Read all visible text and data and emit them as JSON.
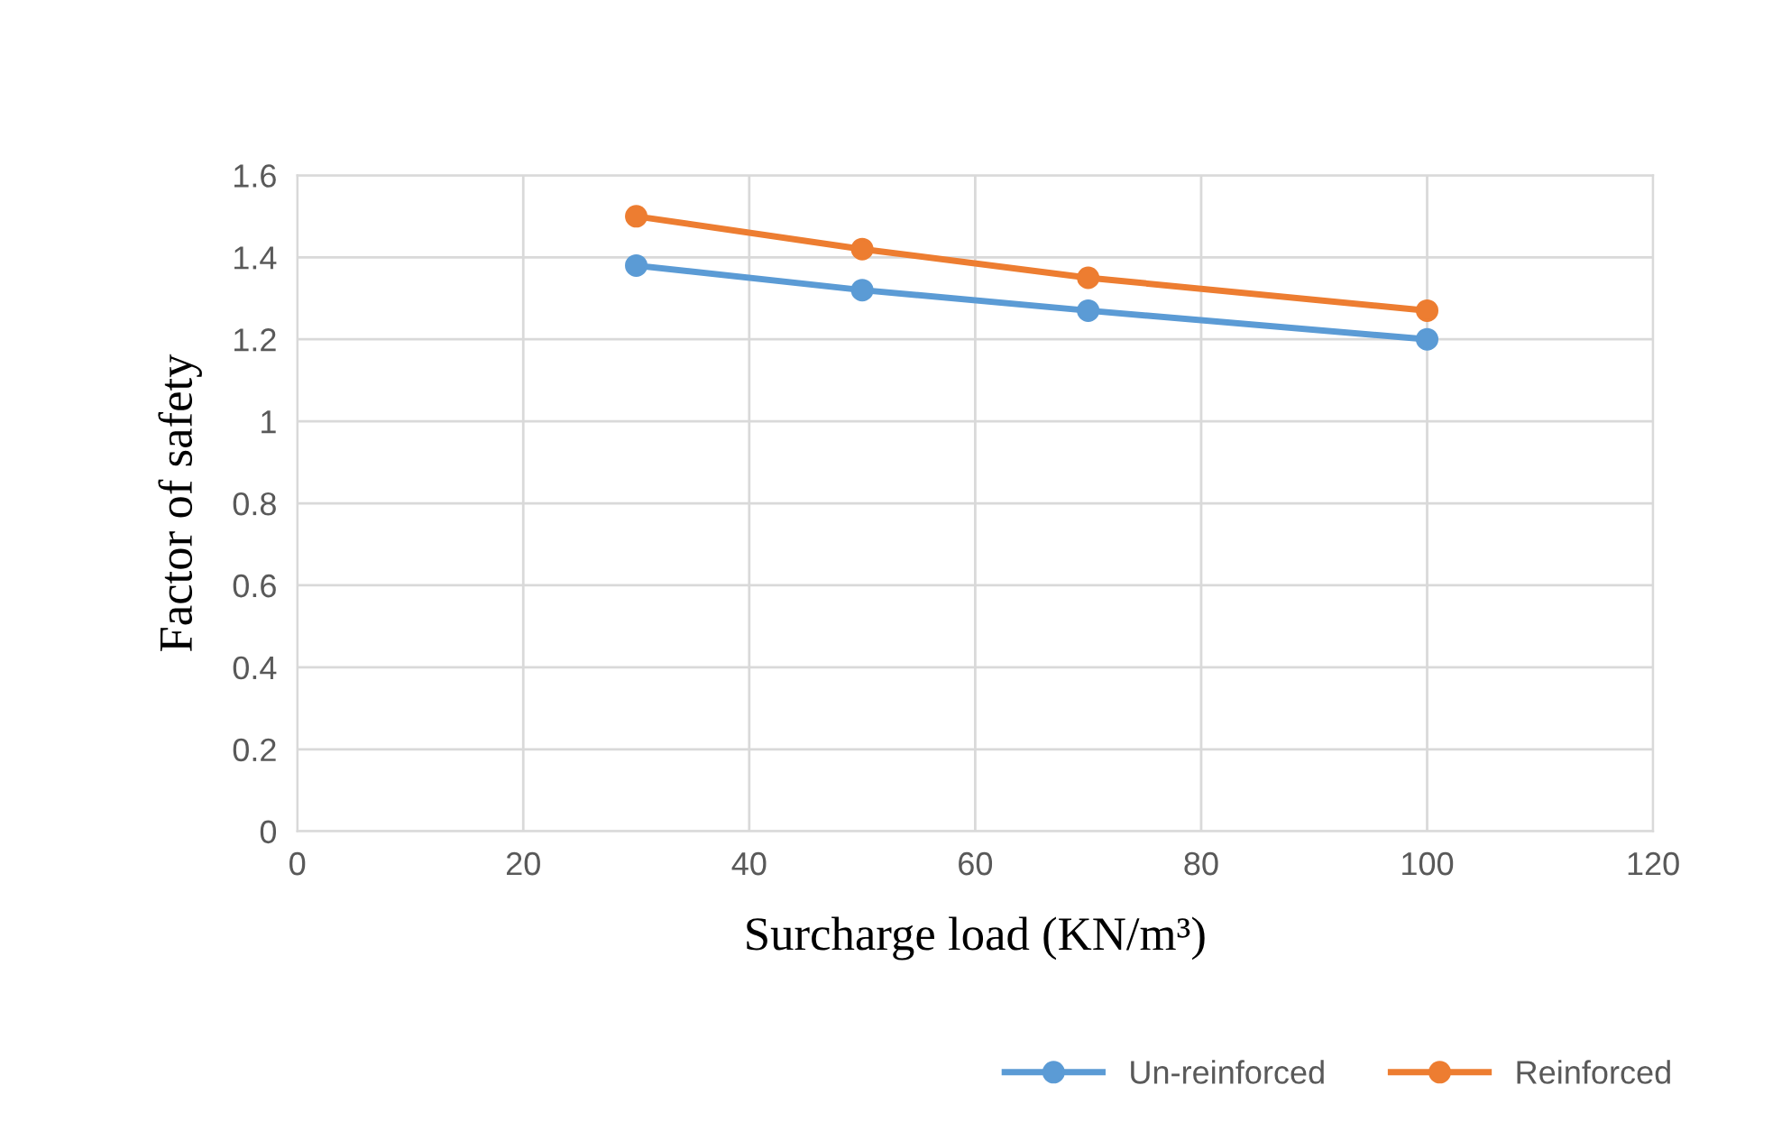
{
  "chart_data": {
    "type": "line",
    "xlabel": "Surcharge load (KN/m³)",
    "ylabel": "Factor of safety",
    "x": [
      30,
      50,
      70,
      100
    ],
    "series": [
      {
        "name": "Un-reinforced",
        "color": "#5b9bd5",
        "values": [
          1.38,
          1.32,
          1.27,
          1.2
        ]
      },
      {
        "name": "Reinforced",
        "color": "#ed7d31",
        "values": [
          1.5,
          1.42,
          1.35,
          1.27
        ]
      }
    ],
    "xlim": [
      0,
      120
    ],
    "xticks": [
      0,
      20,
      40,
      60,
      80,
      100,
      120
    ],
    "ylim": [
      0,
      1.6
    ],
    "yticks": [
      0,
      0.2,
      0.4,
      0.6,
      0.8,
      1,
      1.2,
      1.4,
      1.6
    ],
    "grid": true,
    "legend": "bottom",
    "marker": "circle",
    "line_style": "solid"
  }
}
